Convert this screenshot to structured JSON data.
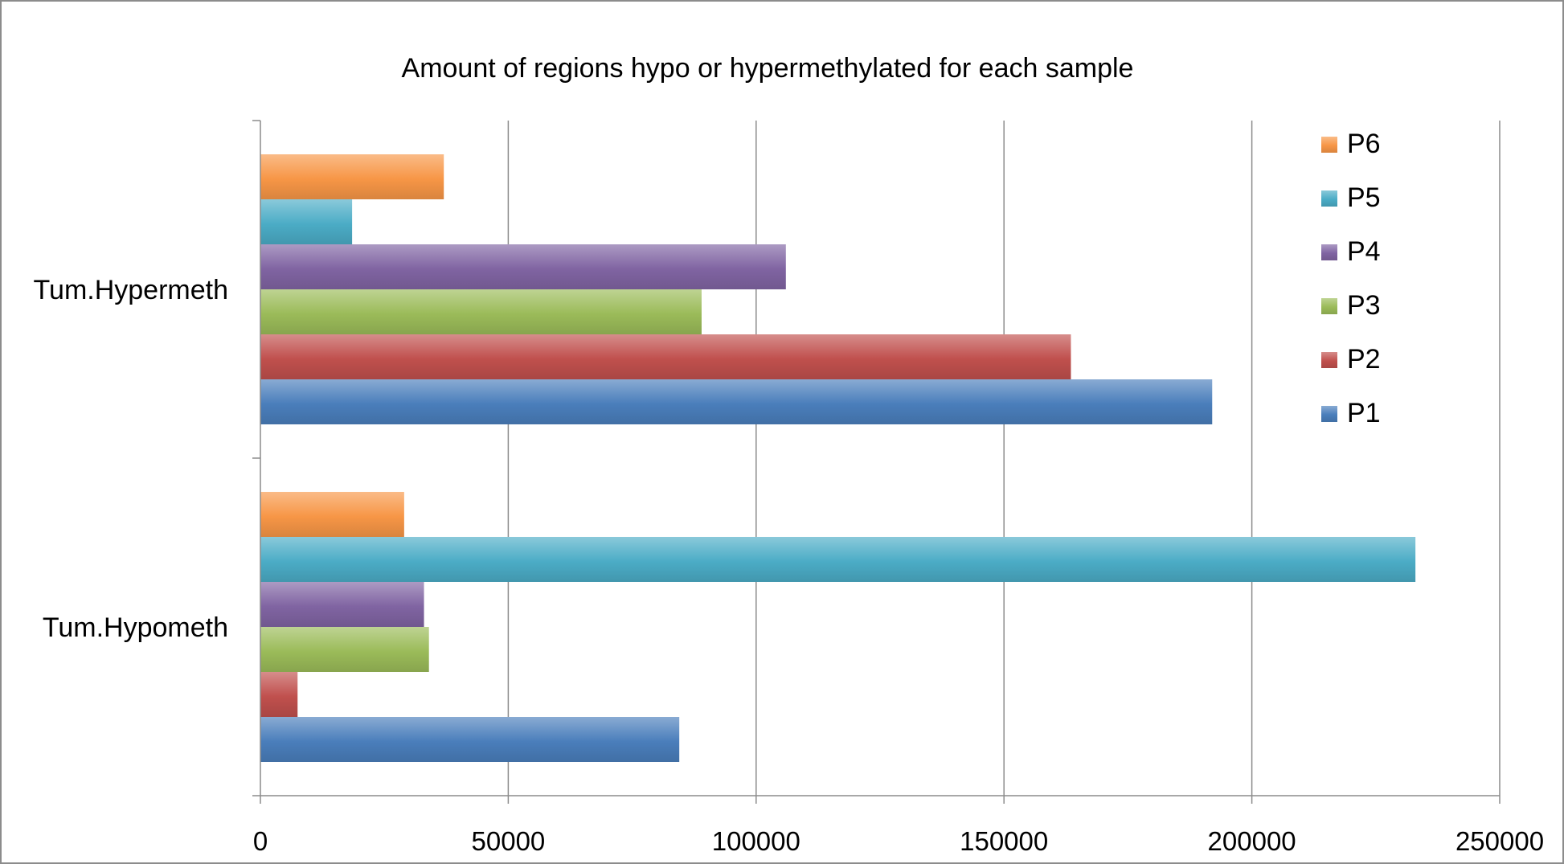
{
  "chart_data": {
    "type": "bar",
    "orientation": "horizontal",
    "title": "Amount of regions hypo or hypermethylated for each sample",
    "xlabel": "",
    "ylabel": "",
    "categories": [
      "Tum.Hypermeth",
      "Tum.Hypometh"
    ],
    "xlim": [
      0,
      250000
    ],
    "xticks": [
      "0",
      "50000",
      "100000",
      "150000",
      "200000",
      "250000"
    ],
    "grid": true,
    "legend_position": "right",
    "series": [
      {
        "name": "P1",
        "color": "#4a7ebb",
        "values": [
          192000,
          84500
        ]
      },
      {
        "name": "P2",
        "color": "#c0504d",
        "values": [
          163500,
          7500
        ]
      },
      {
        "name": "P3",
        "color": "#9bbb59",
        "values": [
          89000,
          34000
        ]
      },
      {
        "name": "P4",
        "color": "#8064a2",
        "values": [
          106000,
          33000
        ]
      },
      {
        "name": "P5",
        "color": "#4bacc6",
        "values": [
          18500,
          233000
        ]
      },
      {
        "name": "P6",
        "color": "#f79646",
        "values": [
          37000,
          29000
        ]
      }
    ]
  }
}
